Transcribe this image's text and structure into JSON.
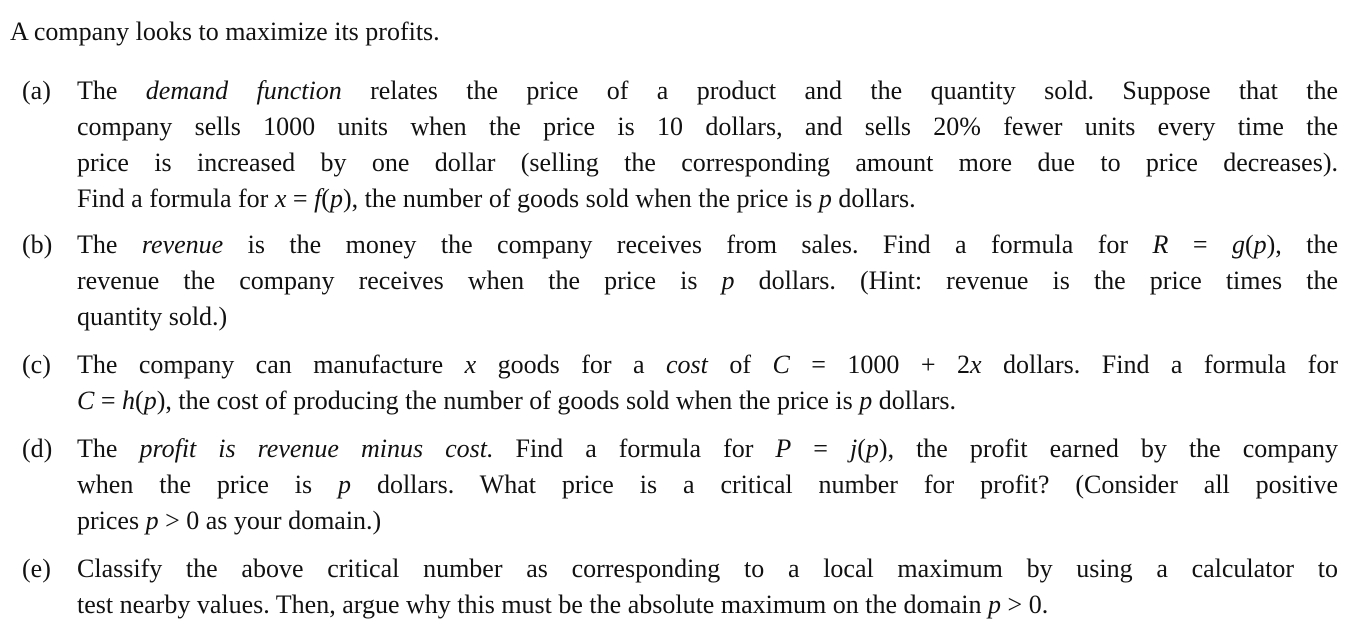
{
  "intro": "A company looks to maximize its profits.",
  "items": [
    {
      "label": "(a)",
      "lines": [
        [
          [
            "t",
            "The "
          ],
          [
            "i",
            "demand function"
          ],
          [
            "t",
            " relates the price of a product and the quantity sold. Suppose that the"
          ]
        ],
        [
          [
            "t",
            "company sells 1000 units when the price is 10 dollars, and sells 20% fewer units every time the"
          ]
        ],
        [
          [
            "t",
            "price is increased by one dollar (selling the corresponding amount more due to price decreases)."
          ]
        ],
        [
          [
            "t",
            "Find a formula for "
          ],
          [
            "m",
            "x"
          ],
          [
            "t",
            " = "
          ],
          [
            "m",
            "f"
          ],
          [
            "t",
            "("
          ],
          [
            "m",
            "p"
          ],
          [
            "t",
            "), the number of goods sold when the price is "
          ],
          [
            "m",
            "p"
          ],
          [
            "t",
            " dollars."
          ]
        ]
      ]
    },
    {
      "label": "(b)",
      "lines": [
        [
          [
            "t",
            "The "
          ],
          [
            "i",
            "revenue"
          ],
          [
            "t",
            " is the money the company receives from sales. Find a formula for "
          ],
          [
            "m",
            "R"
          ],
          [
            "t",
            " = "
          ],
          [
            "m",
            "g"
          ],
          [
            "t",
            "("
          ],
          [
            "m",
            "p"
          ],
          [
            "t",
            "), the"
          ]
        ],
        [
          [
            "t",
            "revenue the company receives when the price is "
          ],
          [
            "m",
            "p"
          ],
          [
            "t",
            " dollars. (Hint: revenue is the price times the"
          ]
        ],
        [
          [
            "t",
            "quantity sold.)"
          ]
        ]
      ]
    },
    {
      "label": "(c)",
      "lines": [
        [
          [
            "t",
            "The company can manufacture "
          ],
          [
            "m",
            "x"
          ],
          [
            "t",
            " goods for a "
          ],
          [
            "i",
            "cost"
          ],
          [
            "t",
            " of "
          ],
          [
            "m",
            "C"
          ],
          [
            "t",
            " = 1000 + 2"
          ],
          [
            "m",
            "x"
          ],
          [
            "t",
            " dollars. Find a formula for"
          ]
        ],
        [
          [
            "m",
            "C"
          ],
          [
            "t",
            " = "
          ],
          [
            "m",
            "h"
          ],
          [
            "t",
            "("
          ],
          [
            "m",
            "p"
          ],
          [
            "t",
            "), the cost of producing the number of goods sold when the price is "
          ],
          [
            "m",
            "p"
          ],
          [
            "t",
            " dollars."
          ]
        ]
      ]
    },
    {
      "label": "(d)",
      "lines": [
        [
          [
            "t",
            "The "
          ],
          [
            "i",
            "profit is revenue minus cost."
          ],
          [
            "t",
            " Find a formula for "
          ],
          [
            "m",
            "P"
          ],
          [
            "t",
            " = "
          ],
          [
            "m",
            "j"
          ],
          [
            "t",
            "("
          ],
          [
            "m",
            "p"
          ],
          [
            "t",
            "), the profit earned by the company"
          ]
        ],
        [
          [
            "t",
            "when the price is "
          ],
          [
            "m",
            "p"
          ],
          [
            "t",
            " dollars. What price is a critical number for profit? (Consider all positive"
          ]
        ],
        [
          [
            "t",
            "prices "
          ],
          [
            "m",
            "p"
          ],
          [
            "t",
            " > 0 as your domain.)"
          ]
        ]
      ]
    },
    {
      "label": "(e)",
      "lines": [
        [
          [
            "t",
            "Classify the above critical number as corresponding to a local maximum by using a calculator to"
          ]
        ],
        [
          [
            "t",
            "test nearby values. Then, argue why this must be the absolute maximum on the domain "
          ],
          [
            "m",
            "p"
          ],
          [
            "t",
            " > 0."
          ]
        ]
      ]
    }
  ]
}
